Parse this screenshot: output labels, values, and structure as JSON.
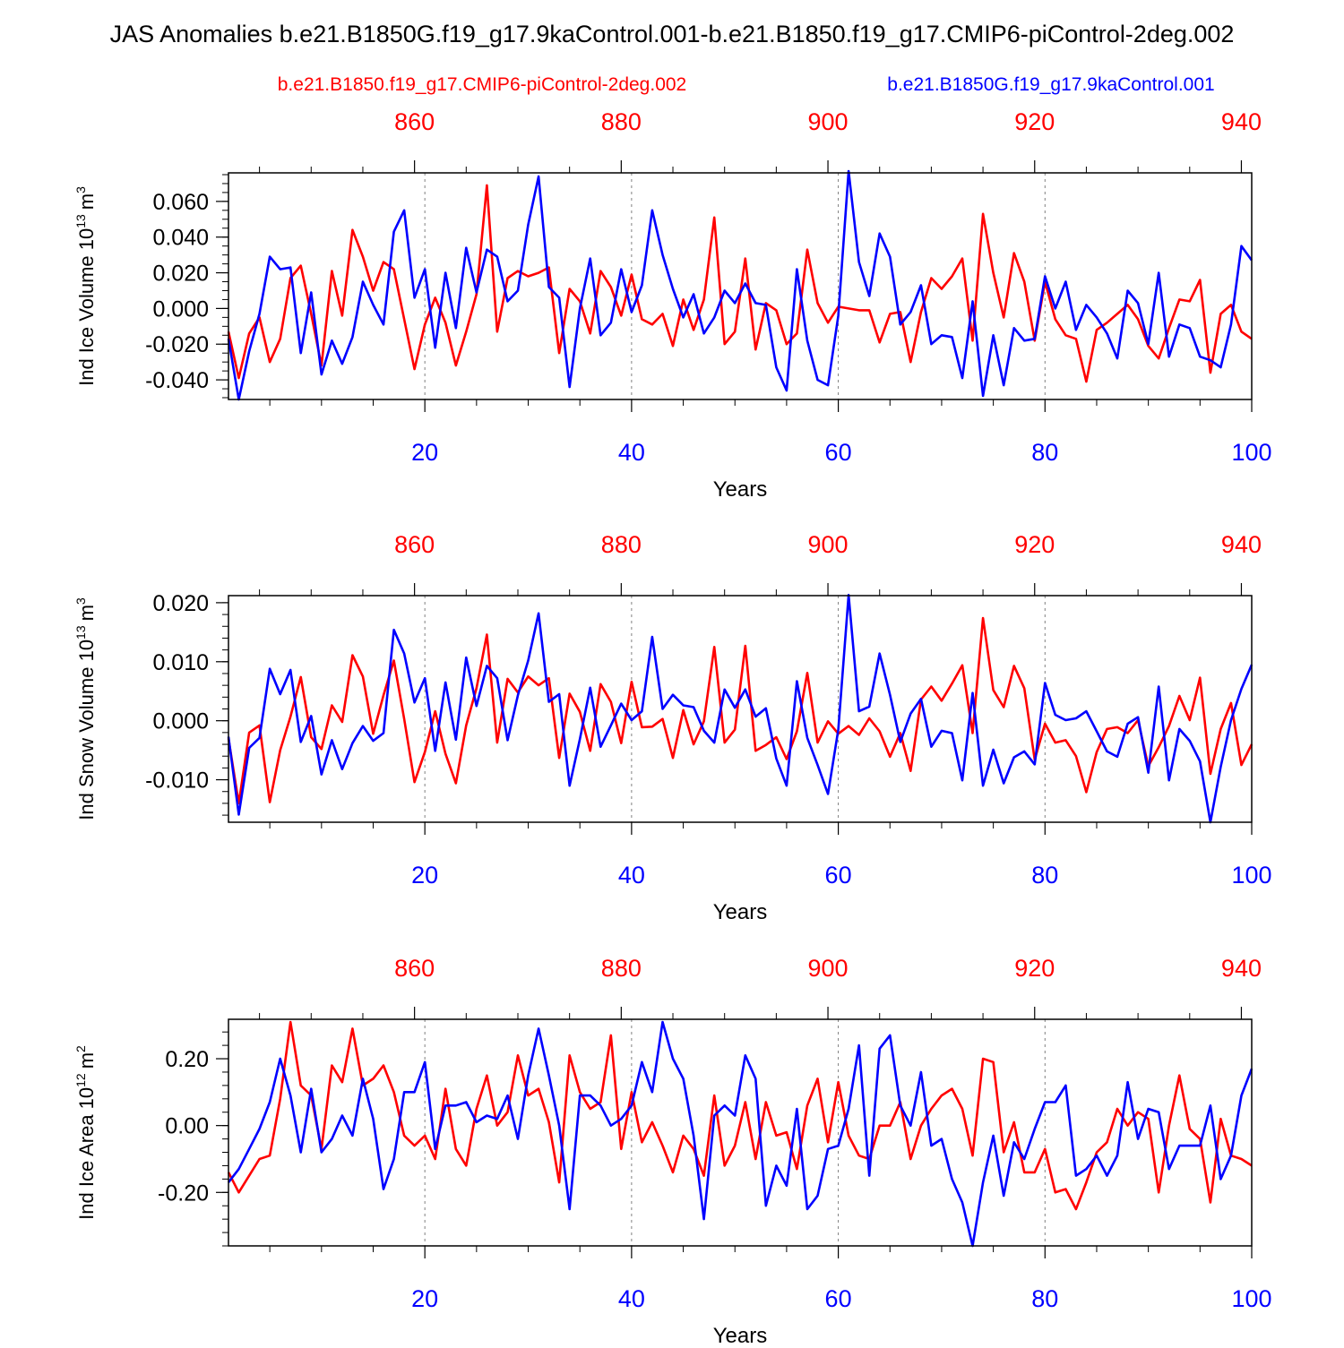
{
  "title": "JAS Anomalies b.e21.B1850G.f19_g17.9kaControl.001-b.e21.B1850.f19_g17.CMIP6-piControl-2deg.002",
  "colors": {
    "control": "#ff0000",
    "experiment": "#0000ff",
    "axis": "#000000",
    "grid": "#808080"
  },
  "legend": {
    "red_label": "b.e21.B1850.f19_g17.CMIP6-piControl-2deg.002",
    "blue_label": "b.e21.B1850G.f19_g17.9kaControl.001"
  },
  "chart_data": [
    {
      "type": "line",
      "ylabel_text": "Ind Ice Volume 10",
      "ylabel_exp": "13",
      "ylabel_unit": "m",
      "ylabel_unit_exp": "3",
      "xlabel": "Years",
      "xlim": [
        1,
        100
      ],
      "ylim": [
        -0.051,
        0.076
      ],
      "yticks": [
        -0.04,
        -0.02,
        0.0,
        0.02,
        0.04,
        0.06
      ],
      "ytick_labels": [
        "-0.040",
        "-0.020",
        "0.000",
        "0.020",
        "0.040",
        "0.060"
      ],
      "yminor": 0.005,
      "xticks": [
        20,
        40,
        60,
        80,
        100
      ],
      "xtick_labels": [
        "20",
        "40",
        "60",
        "80",
        "100"
      ],
      "top_ticks": [
        860,
        880,
        900,
        920,
        940
      ],
      "top_tick_labels": [
        "860",
        "880",
        "900",
        "920",
        "940"
      ],
      "top_offset": 841,
      "grid_x": [
        20,
        40,
        60,
        80
      ],
      "series": [
        {
          "name": "b.e21.B1850.f19_g17.CMIP6-piControl-2deg.002",
          "color": "#ff0000",
          "values": [
            -0.013,
            -0.039,
            -0.014,
            -0.005,
            -0.03,
            -0.017,
            0.017,
            0.024,
            -0.003,
            -0.032,
            0.021,
            -0.004,
            0.044,
            0.029,
            0.01,
            0.026,
            0.022,
            -0.006,
            -0.034,
            -0.009,
            0.006,
            -0.008,
            -0.032,
            -0.013,
            0.008,
            0.069,
            -0.013,
            0.017,
            0.021,
            0.018,
            0.02,
            0.023,
            -0.025,
            0.011,
            0.004,
            -0.014,
            0.021,
            0.012,
            -0.004,
            0.019,
            -0.006,
            -0.009,
            -0.003,
            -0.021,
            0.005,
            -0.012,
            0.005,
            0.051,
            -0.02,
            -0.013,
            0.028,
            -0.023,
            0.003,
            -0.001,
            -0.02,
            -0.014,
            0.033,
            0.003,
            -0.008,
            0.001,
            0.0,
            -0.001,
            -0.001,
            -0.019,
            -0.003,
            -0.002,
            -0.03,
            -0.002,
            0.017,
            0.011,
            0.018,
            0.028,
            -0.018,
            0.053,
            0.02,
            -0.005,
            0.031,
            0.015,
            -0.018,
            0.015,
            -0.006,
            -0.015,
            -0.017,
            -0.041,
            -0.012,
            -0.008,
            -0.003,
            0.002,
            -0.006,
            -0.021,
            -0.028,
            -0.011,
            0.005,
            0.004,
            0.016,
            -0.036,
            -0.003,
            0.002,
            -0.013,
            -0.017
          ]
        },
        {
          "name": "b.e21.B1850G.f19_g17.9kaControl.001",
          "color": "#0000ff",
          "values": [
            -0.017,
            -0.051,
            -0.024,
            -0.003,
            0.029,
            0.022,
            0.023,
            -0.025,
            0.009,
            -0.037,
            -0.018,
            -0.031,
            -0.016,
            0.015,
            0.002,
            -0.009,
            0.043,
            0.055,
            0.006,
            0.022,
            -0.022,
            0.02,
            -0.011,
            0.034,
            0.009,
            0.033,
            0.029,
            0.004,
            0.01,
            0.047,
            0.074,
            0.012,
            0.006,
            -0.044,
            0.0,
            0.028,
            -0.015,
            -0.008,
            0.022,
            -0.002,
            0.013,
            0.055,
            0.03,
            0.011,
            -0.005,
            0.008,
            -0.014,
            -0.005,
            0.01,
            0.003,
            0.014,
            0.003,
            0.002,
            -0.033,
            -0.046,
            0.022,
            -0.018,
            -0.04,
            -0.043,
            -0.004,
            0.077,
            0.026,
            0.007,
            0.042,
            0.029,
            -0.009,
            -0.002,
            0.013,
            -0.02,
            -0.015,
            -0.016,
            -0.039,
            0.004,
            -0.049,
            -0.015,
            -0.043,
            -0.011,
            -0.018,
            -0.017,
            0.018,
            0.0,
            0.015,
            -0.012,
            0.002,
            -0.005,
            -0.014,
            -0.028,
            0.01,
            0.003,
            -0.02,
            0.02,
            -0.027,
            -0.009,
            -0.011,
            -0.027,
            -0.029,
            -0.033,
            -0.009,
            0.035,
            0.027
          ]
        }
      ]
    },
    {
      "type": "line",
      "ylabel_text": "Ind Snow Volume 10",
      "ylabel_exp": "13",
      "ylabel_unit": "m",
      "ylabel_unit_exp": "3",
      "xlabel": "Years",
      "xlim": [
        1,
        100
      ],
      "ylim": [
        -0.0172,
        0.0212
      ],
      "yticks": [
        -0.01,
        0.0,
        0.01,
        0.02
      ],
      "ytick_labels": [
        "-0.010",
        "0.000",
        "0.010",
        "0.020"
      ],
      "yminor": 0.002,
      "xticks": [
        20,
        40,
        60,
        80,
        100
      ],
      "xtick_labels": [
        "20",
        "40",
        "60",
        "80",
        "100"
      ],
      "top_ticks": [
        860,
        880,
        900,
        920,
        940
      ],
      "top_tick_labels": [
        "860",
        "880",
        "900",
        "920",
        "940"
      ],
      "top_offset": 841,
      "grid_x": [
        20,
        40,
        60,
        80
      ],
      "series": [
        {
          "name": "b.e21.B1850.f19_g17.CMIP6-piControl-2deg.002",
          "color": "#ff0000",
          "values": [
            -0.003,
            -0.014,
            -0.002,
            -0.0008,
            -0.0138,
            -0.005,
            0.0007,
            0.0074,
            -0.0028,
            -0.0048,
            0.0026,
            -0.0002,
            0.0111,
            0.0075,
            -0.0022,
            0.0043,
            0.0102,
            0.0003,
            -0.0104,
            -0.0053,
            0.0016,
            -0.0056,
            -0.0106,
            -0.0008,
            0.0055,
            0.0146,
            -0.0037,
            0.0071,
            0.0048,
            0.0075,
            0.006,
            0.0072,
            -0.0063,
            0.0046,
            0.0015,
            -0.0051,
            0.0062,
            0.0032,
            -0.0038,
            0.0066,
            -0.0011,
            -0.001,
            0.0003,
            -0.0063,
            0.0018,
            -0.004,
            -0.0001,
            0.0125,
            -0.0037,
            -0.0015,
            0.0127,
            -0.0051,
            -0.0041,
            -0.0028,
            -0.0065,
            -0.0018,
            0.0081,
            -0.0037,
            -0.0001,
            -0.0022,
            -0.0009,
            -0.0024,
            0.0004,
            -0.0018,
            -0.0061,
            -0.0021,
            -0.0085,
            0.0036,
            0.0058,
            0.0034,
            0.0063,
            0.0094,
            -0.0021,
            0.0174,
            0.0052,
            0.0023,
            0.0093,
            0.0055,
            -0.0066,
            -0.0005,
            -0.0037,
            -0.0033,
            -0.006,
            -0.0121,
            -0.0053,
            -0.0014,
            -0.0011,
            -0.0021,
            0.0001,
            -0.0077,
            -0.0045,
            -0.0009,
            0.0042,
            0.0001,
            0.0073,
            -0.009,
            -0.0014,
            0.003,
            -0.0075,
            -0.004
          ]
        },
        {
          "name": "b.e21.B1850G.f19_g17.9kaControl.001",
          "color": "#0000ff",
          "values": [
            -0.0027,
            -0.0159,
            -0.0046,
            -0.0029,
            0.0088,
            0.0045,
            0.0086,
            -0.0036,
            0.0008,
            -0.0091,
            -0.0033,
            -0.0082,
            -0.0038,
            -0.0009,
            -0.0034,
            -0.0021,
            0.0154,
            0.0114,
            0.0031,
            0.0072,
            -0.0051,
            0.0065,
            -0.0032,
            0.0107,
            0.0025,
            0.0093,
            0.0072,
            -0.0033,
            0.0043,
            0.0102,
            0.0182,
            0.0032,
            0.0045,
            -0.011,
            -0.0031,
            0.0056,
            -0.0044,
            -0.0008,
            0.0029,
            0.0001,
            0.0016,
            0.0142,
            0.002,
            0.0044,
            0.0026,
            0.0023,
            -0.0017,
            -0.0037,
            0.0053,
            0.0022,
            0.0053,
            0.0007,
            0.0021,
            -0.0064,
            -0.011,
            0.0067,
            -0.0029,
            -0.0075,
            -0.0124,
            -0.0015,
            0.0213,
            0.0016,
            0.0024,
            0.0114,
            0.0044,
            -0.0036,
            0.0012,
            0.0037,
            -0.0044,
            -0.0017,
            -0.0021,
            -0.0101,
            0.0047,
            -0.011,
            -0.0049,
            -0.0106,
            -0.0062,
            -0.0052,
            -0.0074,
            0.0064,
            0.001,
            0.0001,
            0.0004,
            0.0016,
            -0.0018,
            -0.0052,
            -0.0061,
            -0.0005,
            0.0006,
            -0.0088,
            0.0058,
            -0.0101,
            -0.0014,
            -0.0034,
            -0.0069,
            -0.0172,
            -0.0078,
            0.0001,
            0.0054,
            0.0095
          ]
        }
      ]
    },
    {
      "type": "line",
      "ylabel_text": "Ind Ice Area 10",
      "ylabel_exp": "12",
      "ylabel_unit": "m",
      "ylabel_unit_exp": "2",
      "xlabel": "Years",
      "xlim": [
        1,
        100
      ],
      "ylim": [
        -0.36,
        0.318
      ],
      "yticks": [
        -0.2,
        0.0,
        0.2
      ],
      "ytick_labels": [
        "-0.20",
        "0.00",
        "0.20"
      ],
      "yminor": 0.04,
      "xticks": [
        20,
        40,
        60,
        80,
        100
      ],
      "xtick_labels": [
        "20",
        "40",
        "60",
        "80",
        "100"
      ],
      "top_ticks": [
        860,
        880,
        900,
        920,
        940
      ],
      "top_tick_labels": [
        "860",
        "880",
        "900",
        "920",
        "940"
      ],
      "top_offset": 841,
      "grid_x": [
        20,
        40,
        60,
        80
      ],
      "series": [
        {
          "name": "b.e21.B1850.f19_g17.CMIP6-piControl-2deg.002",
          "color": "#ff0000",
          "values": [
            -0.14,
            -0.2,
            -0.15,
            -0.1,
            -0.09,
            0.08,
            0.31,
            0.12,
            0.09,
            -0.07,
            0.18,
            0.13,
            0.29,
            0.12,
            0.14,
            0.18,
            0.1,
            -0.03,
            -0.06,
            -0.03,
            -0.1,
            0.11,
            -0.07,
            -0.12,
            0.05,
            0.15,
            0.0,
            0.04,
            0.21,
            0.09,
            0.11,
            0.01,
            -0.17,
            0.21,
            0.1,
            0.05,
            0.07,
            0.27,
            -0.07,
            0.1,
            -0.05,
            0.01,
            -0.06,
            -0.14,
            -0.03,
            -0.07,
            -0.15,
            0.09,
            -0.12,
            -0.06,
            0.07,
            -0.1,
            0.07,
            -0.03,
            -0.02,
            -0.13,
            0.06,
            0.14,
            -0.05,
            0.13,
            -0.03,
            -0.09,
            -0.1,
            0.0,
            0.0,
            0.07,
            -0.1,
            0.0,
            0.05,
            0.09,
            0.11,
            0.05,
            -0.09,
            0.2,
            0.19,
            -0.08,
            0.01,
            -0.14,
            -0.14,
            -0.07,
            -0.2,
            -0.19,
            -0.25,
            -0.17,
            -0.08,
            -0.05,
            0.05,
            0.0,
            0.04,
            0.02,
            -0.2,
            0.0,
            0.15,
            -0.01,
            -0.04,
            -0.23,
            0.02,
            -0.09,
            -0.1,
            -0.12
          ]
        },
        {
          "name": "b.e21.B1850G.f19_g17.9kaControl.001",
          "color": "#0000ff",
          "values": [
            -0.17,
            -0.13,
            -0.07,
            -0.01,
            0.07,
            0.2,
            0.09,
            -0.08,
            0.11,
            -0.08,
            -0.04,
            0.03,
            -0.03,
            0.14,
            0.02,
            -0.19,
            -0.1,
            0.1,
            0.1,
            0.19,
            -0.07,
            0.06,
            0.06,
            0.07,
            0.01,
            0.03,
            0.02,
            0.09,
            -0.04,
            0.15,
            0.29,
            0.15,
            0.0,
            -0.25,
            0.09,
            0.09,
            0.06,
            0.0,
            0.02,
            0.06,
            0.19,
            0.1,
            0.31,
            0.2,
            0.14,
            -0.03,
            -0.28,
            0.03,
            0.06,
            0.03,
            0.21,
            0.14,
            -0.24,
            -0.12,
            -0.18,
            0.05,
            -0.25,
            -0.21,
            -0.07,
            -0.06,
            0.05,
            0.24,
            -0.15,
            0.23,
            0.27,
            0.06,
            0.0,
            0.16,
            -0.06,
            -0.04,
            -0.16,
            -0.23,
            -0.36,
            -0.17,
            -0.03,
            -0.21,
            -0.05,
            -0.1,
            -0.01,
            0.07,
            0.07,
            0.12,
            -0.15,
            -0.13,
            -0.09,
            -0.15,
            -0.09,
            0.13,
            -0.04,
            0.05,
            0.04,
            -0.13,
            -0.06,
            -0.06,
            -0.06,
            0.06,
            -0.16,
            -0.09,
            0.09,
            0.17
          ]
        }
      ]
    }
  ]
}
